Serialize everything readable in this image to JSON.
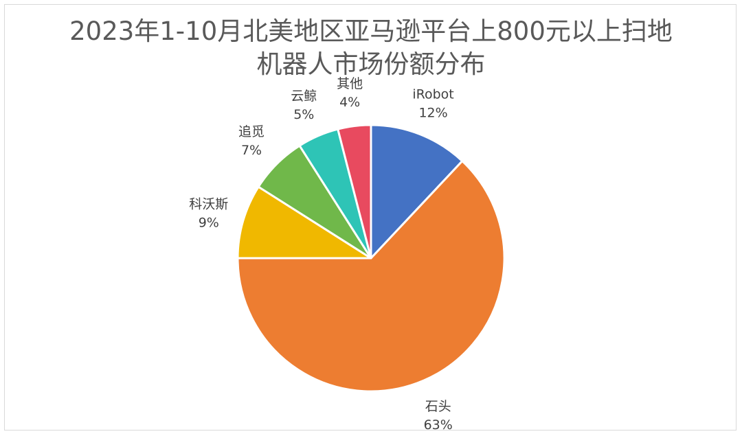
{
  "chart_data": {
    "type": "pie",
    "title_lines": [
      "2023年1-10月北美地区亚马逊平台上800元以上扫地",
      "机器人市场份额分布"
    ],
    "slices": [
      {
        "label": "iRobot",
        "value": 12,
        "pct_text": "12%",
        "color": "#4472c4"
      },
      {
        "label": "石头",
        "value": 63,
        "pct_text": "63%",
        "color": "#ed7d31"
      },
      {
        "label": "科沃斯",
        "value": 9,
        "pct_text": "9%",
        "color": "#f0b800"
      },
      {
        "label": "追觅",
        "value": 7,
        "pct_text": "7%",
        "color": "#70b84a"
      },
      {
        "label": "云鲸",
        "value": 5,
        "pct_text": "5%",
        "color": "#2ec4b6"
      },
      {
        "label": "其他",
        "value": 4,
        "pct_text": "4%",
        "color": "#e84a5f"
      }
    ]
  }
}
